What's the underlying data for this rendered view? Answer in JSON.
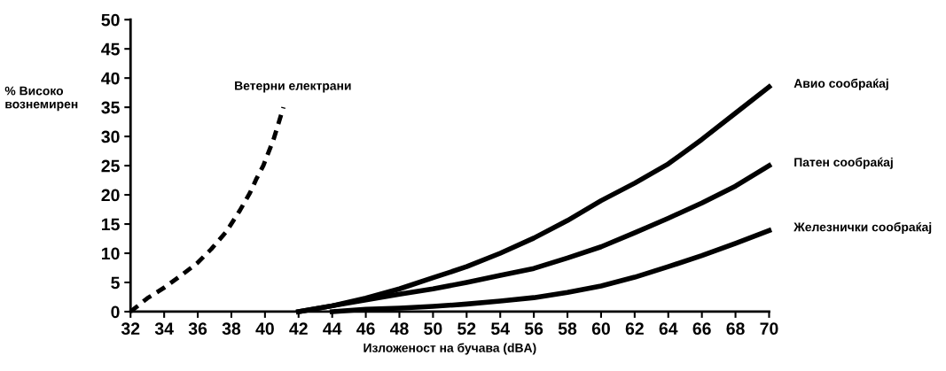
{
  "chart_data": {
    "type": "line",
    "xlabel": "Изложеност на бучава (dBA)",
    "ylabel": "% Високо\nвознемирен",
    "xlim": [
      32,
      70
    ],
    "xticks": [
      32,
      34,
      36,
      38,
      40,
      42,
      44,
      46,
      48,
      50,
      52,
      54,
      56,
      58,
      60,
      62,
      64,
      66,
      68,
      70
    ],
    "ylim": [
      0,
      50
    ],
    "yticks": [
      0,
      5,
      10,
      15,
      20,
      25,
      30,
      35,
      40,
      45,
      50
    ],
    "grid": false,
    "legend": false,
    "series": [
      {
        "name": "Ветерни електрани",
        "color": "#000000",
        "line_style": "dashed",
        "x": [
          32,
          33.0,
          34.0,
          35.1,
          36.0,
          36.8,
          37.7,
          38.5,
          39.1,
          39.5,
          39.9,
          40.5,
          40.8,
          41.1
        ],
        "values": [
          0,
          2.3,
          4.1,
          6.4,
          8.4,
          10.7,
          13.7,
          17.3,
          20.3,
          22.8,
          25.0,
          29.4,
          32.2,
          35
        ]
      },
      {
        "name": "Авио сообраќај",
        "color": "#000000",
        "line_style": "solid",
        "x": [
          42,
          44,
          46,
          48,
          50,
          52,
          54,
          56,
          58,
          60,
          62,
          64,
          66,
          68,
          70
        ],
        "values": [
          0,
          1,
          2.3,
          3.9,
          5.8,
          7.7,
          10,
          12.6,
          15.6,
          19,
          22,
          25.3,
          29.5,
          34,
          38.5
        ]
      },
      {
        "name": "Патен сообраќај",
        "color": "#000000",
        "line_style": "solid",
        "x": [
          42,
          44,
          46,
          48,
          50,
          52,
          54,
          56,
          58,
          60,
          62,
          64,
          66,
          68,
          70
        ],
        "values": [
          0,
          1,
          2,
          3,
          3.9,
          5,
          6.2,
          7.4,
          9.2,
          11.1,
          13.5,
          16,
          18.6,
          21.5,
          25
        ]
      },
      {
        "name": "Железнички сообраќај",
        "color": "#000000",
        "line_style": "solid",
        "x": [
          44,
          46,
          48,
          50,
          52,
          54,
          56,
          58,
          60,
          62,
          64,
          66,
          68,
          70
        ],
        "values": [
          0,
          0.4,
          0.6,
          0.9,
          1.3,
          1.8,
          2.4,
          3.3,
          4.4,
          5.9,
          7.7,
          9.6,
          11.7,
          13.9
        ]
      }
    ]
  }
}
